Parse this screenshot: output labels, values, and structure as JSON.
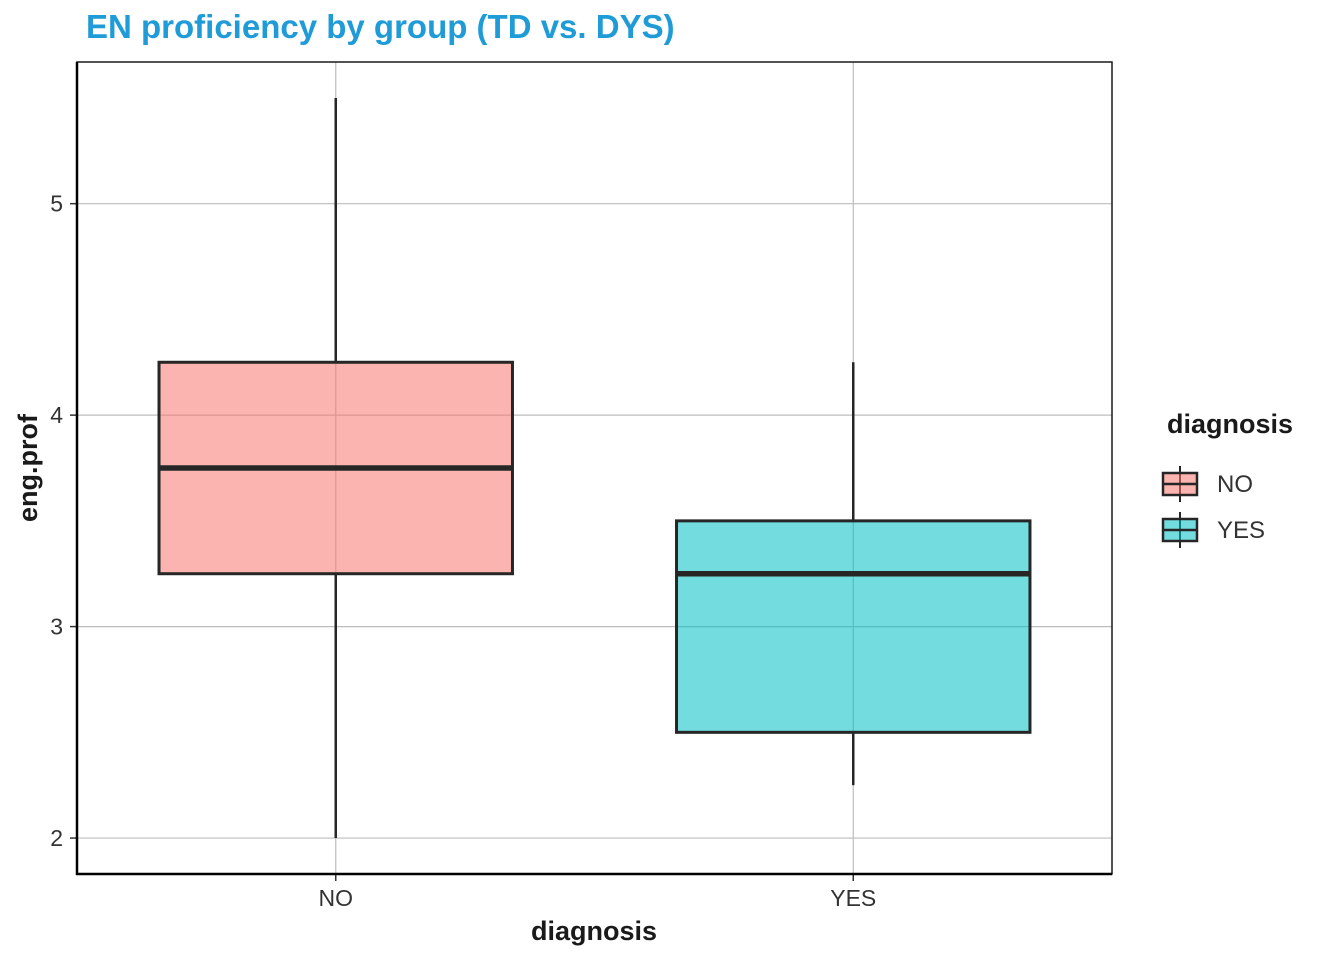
{
  "chart_data": {
    "type": "boxplot",
    "title": "EN proficiency by group (TD vs. DYS)",
    "xlabel": "diagnosis",
    "ylabel": "eng.prof",
    "categories": [
      "NO",
      "YES"
    ],
    "yticks": [
      2,
      3,
      4,
      5
    ],
    "ylim": [
      1.83,
      5.67
    ],
    "grid": true,
    "legend": {
      "title": "diagnosis",
      "position": "right",
      "entries": [
        "NO",
        "YES"
      ]
    },
    "boxes": [
      {
        "category": "NO",
        "min": 2.0,
        "q1": 3.25,
        "median": 3.75,
        "q3": 4.25,
        "max": 5.5,
        "color": "#F8766D"
      },
      {
        "category": "YES",
        "min": 2.25,
        "q1": 2.5,
        "median": 3.25,
        "q3": 3.5,
        "max": 4.25,
        "color": "#00BFC4"
      }
    ],
    "colors": {
      "title": "#1f9bd7",
      "box_outline": "#262626"
    }
  }
}
